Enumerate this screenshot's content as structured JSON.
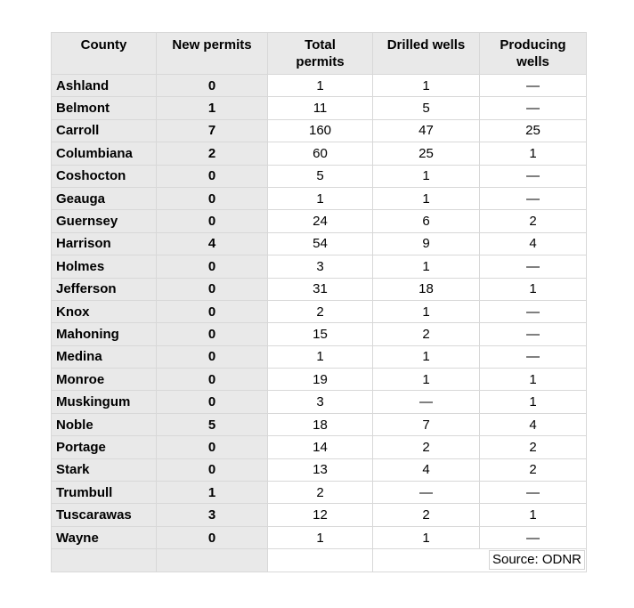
{
  "colors": {
    "cell_gray": "#e9e9e9",
    "grid_line": "#d8d8d8",
    "text": "#000000",
    "background": "#ffffff"
  },
  "chart_data": {
    "type": "table",
    "title": "",
    "columns": [
      "County",
      "New permits",
      "Total permits",
      "Drilled wells",
      "Producing wells"
    ],
    "header_display": [
      "County",
      "New permits",
      "Total\npermits",
      "Drilled wells",
      "Producing\nwells"
    ],
    "missing_marker": "—",
    "rows": [
      [
        "Ashland",
        0,
        1,
        1,
        "—"
      ],
      [
        "Belmont",
        1,
        11,
        5,
        "—"
      ],
      [
        "Carroll",
        7,
        160,
        47,
        25
      ],
      [
        "Columbiana",
        2,
        60,
        25,
        1
      ],
      [
        "Coshocton",
        0,
        5,
        1,
        "—"
      ],
      [
        "Geauga",
        0,
        1,
        1,
        "—"
      ],
      [
        "Guernsey",
        0,
        24,
        6,
        2
      ],
      [
        "Harrison",
        4,
        54,
        9,
        4
      ],
      [
        "Holmes",
        0,
        3,
        1,
        "—"
      ],
      [
        "Jefferson",
        0,
        31,
        18,
        1
      ],
      [
        "Knox",
        0,
        2,
        1,
        "—"
      ],
      [
        "Mahoning",
        0,
        15,
        2,
        "—"
      ],
      [
        "Medina",
        0,
        1,
        1,
        "—"
      ],
      [
        "Monroe",
        0,
        19,
        1,
        1
      ],
      [
        "Muskingum",
        0,
        3,
        "—",
        1
      ],
      [
        "Noble",
        5,
        18,
        7,
        4
      ],
      [
        "Portage",
        0,
        14,
        2,
        2
      ],
      [
        "Stark",
        0,
        13,
        4,
        2
      ],
      [
        "Trumbull",
        1,
        2,
        "—",
        "—"
      ],
      [
        "Tuscarawas",
        3,
        12,
        2,
        1
      ],
      [
        "Wayne",
        0,
        1,
        1,
        "—"
      ]
    ],
    "source": "Source: ODNR"
  }
}
